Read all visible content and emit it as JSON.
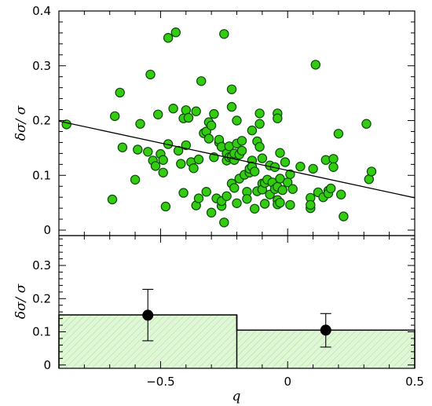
{
  "chart_data": [
    {
      "type": "scatter",
      "panel": "top",
      "title": "",
      "xlabel": "",
      "ylabel": "δσ/ σ",
      "xlim": [
        -0.9,
        0.5
      ],
      "ylim": [
        -0.01,
        0.4
      ],
      "xticks": [
        -0.5,
        0,
        0.5
      ],
      "yticks": [
        0,
        0.1,
        0.2,
        0.3,
        0.4
      ],
      "ytick_labels": [
        "0",
        "0.1",
        "0.2",
        "0.3",
        "0.4"
      ],
      "grid": false,
      "point_color": "#33cc11",
      "points": [
        [
          -0.87,
          0.193
        ],
        [
          -0.69,
          0.056
        ],
        [
          -0.68,
          0.208
        ],
        [
          -0.66,
          0.251
        ],
        [
          -0.65,
          0.151
        ],
        [
          -0.6,
          0.092
        ],
        [
          -0.59,
          0.147
        ],
        [
          -0.58,
          0.194
        ],
        [
          -0.55,
          0.143
        ],
        [
          -0.54,
          0.284
        ],
        [
          -0.53,
          0.127
        ],
        [
          -0.52,
          0.117
        ],
        [
          -0.51,
          0.211
        ],
        [
          -0.5,
          0.139
        ],
        [
          -0.49,
          0.105
        ],
        [
          -0.49,
          0.128
        ],
        [
          -0.48,
          0.043
        ],
        [
          -0.47,
          0.157
        ],
        [
          -0.47,
          0.351
        ],
        [
          -0.45,
          0.222
        ],
        [
          -0.44,
          0.361
        ],
        [
          -0.43,
          0.145
        ],
        [
          -0.42,
          0.121
        ],
        [
          -0.41,
          0.068
        ],
        [
          -0.41,
          0.204
        ],
        [
          -0.4,
          0.219
        ],
        [
          -0.4,
          0.155
        ],
        [
          -0.39,
          0.205
        ],
        [
          -0.38,
          0.124
        ],
        [
          -0.37,
          0.113
        ],
        [
          -0.36,
          0.045
        ],
        [
          -0.36,
          0.217
        ],
        [
          -0.35,
          0.058
        ],
        [
          -0.35,
          0.129
        ],
        [
          -0.34,
          0.272
        ],
        [
          -0.33,
          0.177
        ],
        [
          -0.32,
          0.07
        ],
        [
          -0.32,
          0.18
        ],
        [
          -0.31,
          0.197
        ],
        [
          -0.31,
          0.167
        ],
        [
          -0.3,
          0.191
        ],
        [
          -0.3,
          0.032
        ],
        [
          -0.29,
          0.212
        ],
        [
          -0.29,
          0.133
        ],
        [
          -0.28,
          0.058
        ],
        [
          -0.27,
          0.16
        ],
        [
          -0.27,
          0.165
        ],
        [
          -0.26,
          0.152
        ],
        [
          -0.26,
          0.044
        ],
        [
          -0.26,
          0.053
        ],
        [
          -0.25,
          0.358
        ],
        [
          -0.25,
          0.014
        ],
        [
          -0.24,
          0.14
        ],
        [
          -0.24,
          0.127
        ],
        [
          -0.24,
          0.062
        ],
        [
          -0.23,
          0.133
        ],
        [
          -0.23,
          0.153
        ],
        [
          -0.22,
          0.085
        ],
        [
          -0.22,
          0.134
        ],
        [
          -0.22,
          0.257
        ],
        [
          -0.22,
          0.225
        ],
        [
          -0.21,
          0.077
        ],
        [
          -0.21,
          0.128
        ],
        [
          -0.21,
          0.14
        ],
        [
          -0.2,
          0.049
        ],
        [
          -0.2,
          0.2
        ],
        [
          -0.2,
          0.158
        ],
        [
          -0.19,
          0.138
        ],
        [
          -0.19,
          0.094
        ],
        [
          -0.18,
          0.145
        ],
        [
          -0.18,
          0.163
        ],
        [
          -0.17,
          0.101
        ],
        [
          -0.16,
          0.07
        ],
        [
          -0.16,
          0.057
        ],
        [
          -0.15,
          0.105
        ],
        [
          -0.15,
          0.112
        ],
        [
          -0.14,
          0.127
        ],
        [
          -0.14,
          0.116
        ],
        [
          -0.14,
          0.182
        ],
        [
          -0.13,
          0.107
        ],
        [
          -0.13,
          0.039
        ],
        [
          -0.12,
          0.162
        ],
        [
          -0.12,
          0.071
        ],
        [
          -0.11,
          0.213
        ],
        [
          -0.11,
          0.194
        ],
        [
          -0.11,
          0.152
        ],
        [
          -0.1,
          0.131
        ],
        [
          -0.1,
          0.085
        ],
        [
          -0.1,
          0.074
        ],
        [
          -0.09,
          0.048
        ],
        [
          -0.09,
          0.086
        ],
        [
          -0.08,
          0.092
        ],
        [
          -0.07,
          0.118
        ],
        [
          -0.07,
          0.065
        ],
        [
          -0.06,
          0.087
        ],
        [
          -0.05,
          0.075
        ],
        [
          -0.05,
          0.115
        ],
        [
          -0.04,
          0.079
        ],
        [
          -0.04,
          0.213
        ],
        [
          -0.04,
          0.204
        ],
        [
          -0.04,
          0.055
        ],
        [
          -0.04,
          0.047
        ],
        [
          -0.03,
          0.141
        ],
        [
          -0.03,
          0.094
        ],
        [
          -0.03,
          0.05
        ],
        [
          -0.02,
          0.073
        ],
        [
          -0.01,
          0.124
        ],
        [
          0.0,
          0.087
        ],
        [
          0.01,
          0.046
        ],
        [
          0.01,
          0.102
        ],
        [
          0.02,
          0.075
        ],
        [
          0.05,
          0.116
        ],
        [
          0.09,
          0.04
        ],
        [
          0.09,
          0.059
        ],
        [
          0.09,
          0.046
        ],
        [
          0.1,
          0.112
        ],
        [
          0.11,
          0.302
        ],
        [
          0.12,
          0.069
        ],
        [
          0.14,
          0.06
        ],
        [
          0.15,
          0.128
        ],
        [
          0.16,
          0.072
        ],
        [
          0.16,
          0.067
        ],
        [
          0.17,
          0.076
        ],
        [
          0.18,
          0.13
        ],
        [
          0.18,
          0.115
        ],
        [
          0.2,
          0.176
        ],
        [
          0.21,
          0.065
        ],
        [
          0.22,
          0.025
        ],
        [
          0.31,
          0.194
        ],
        [
          0.32,
          0.093
        ],
        [
          0.33,
          0.107
        ]
      ],
      "fit_line": {
        "x": [
          -0.9,
          0.5
        ],
        "y": [
          0.199,
          0.059
        ]
      }
    },
    {
      "type": "bar",
      "panel": "bottom",
      "title": "",
      "xlabel": "q",
      "ylabel": "δσ/ σ",
      "xlim": [
        -0.9,
        0.5
      ],
      "ylim": [
        -0.01,
        0.39
      ],
      "xticks": [
        -0.5,
        0,
        0.5
      ],
      "xtick_labels": [
        "−0.5",
        "0",
        "0.5"
      ],
      "yticks": [
        0,
        0.1,
        0.2,
        0.3
      ],
      "ytick_labels": [
        "0",
        "0.1",
        "0.2",
        "0.3"
      ],
      "grid": false,
      "fill_color": "#d8f5cc",
      "bins": [
        {
          "x0": -0.9,
          "x1": -0.2,
          "value": 0.151
        },
        {
          "x0": -0.2,
          "x1": 0.5,
          "value": 0.105
        }
      ],
      "means": [
        {
          "x": -0.55,
          "y": 0.15,
          "err_low": 0.073,
          "err_high": 0.228
        },
        {
          "x": 0.15,
          "y": 0.105,
          "err_low": 0.054,
          "err_high": 0.155
        }
      ]
    }
  ]
}
